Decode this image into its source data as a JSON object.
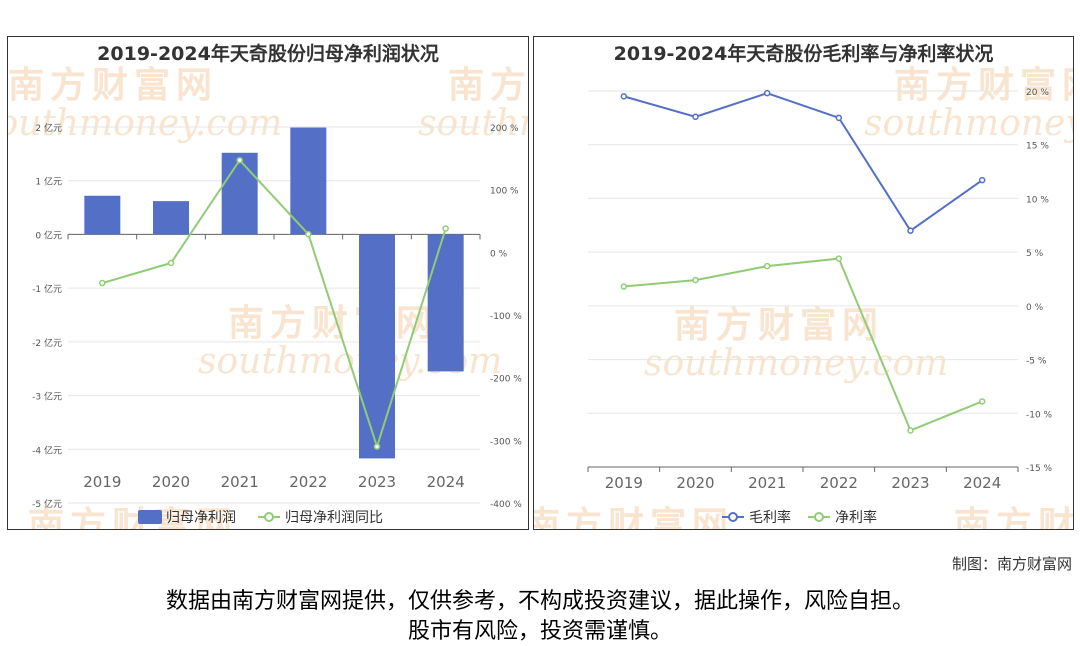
{
  "watermark": {
    "cn": "南方财富网",
    "en": "southmoney.com"
  },
  "colors": {
    "bar": "#5470c6",
    "green": "#91cc75",
    "blue": "#5470c6"
  },
  "credit": "制图：南方财富网",
  "disclaimer": {
    "line1": "数据由南方财富网提供，仅供参考，不构成投资建议，据此操作，风险自担。",
    "line2": "股市有风险，投资需谨慎。"
  },
  "chart_data": [
    {
      "type": "bar",
      "title": "2019-2024年天奇股份归母净利润状况",
      "categories": [
        "2019",
        "2020",
        "2021",
        "2022",
        "2023",
        "2024"
      ],
      "y_left": {
        "ticks": [
          2,
          1,
          0,
          -1,
          -2,
          -3,
          -4,
          -5
        ],
        "tick_labels": [
          "2 亿元",
          "1 亿元",
          "0 亿元",
          "-1 亿元",
          "-2 亿元",
          "-3 亿元",
          "-4 亿元",
          "-5 亿元"
        ],
        "range": [
          -5,
          2
        ]
      },
      "y_right": {
        "ticks": [
          200,
          100,
          0,
          -100,
          -200,
          -300,
          -400
        ],
        "tick_labels": [
          "200 %",
          "100 %",
          "0 %",
          "-100 %",
          "-200 %",
          "-300 %",
          "-400 %"
        ],
        "range": [
          -400,
          200
        ]
      },
      "series": [
        {
          "name": "归母净利润",
          "type": "bar",
          "axis": "left",
          "values": [
            0.72,
            0.62,
            1.52,
            1.99,
            -4.17,
            -2.55
          ]
        },
        {
          "name": "归母净利润同比",
          "type": "line",
          "axis": "right",
          "values": [
            -49,
            -17,
            147,
            29,
            -310,
            38
          ]
        }
      ],
      "legend": "bottom"
    },
    {
      "type": "line",
      "title": "2019-2024年天奇股份毛利率与净利率状况",
      "categories": [
        "2019",
        "2020",
        "2021",
        "2022",
        "2023",
        "2024"
      ],
      "y_right": {
        "ticks": [
          20,
          15,
          10,
          5,
          0,
          -5,
          -10,
          -15
        ],
        "tick_labels": [
          "20 %",
          "15 %",
          "10 %",
          "5 %",
          "0 %",
          "-5 %",
          "-10 %",
          "-15 %"
        ],
        "range": [
          -15,
          20
        ]
      },
      "series": [
        {
          "name": "毛利率",
          "type": "line",
          "axis": "right",
          "values": [
            19.5,
            17.6,
            19.8,
            17.5,
            7.0,
            11.7
          ]
        },
        {
          "name": "净利率",
          "type": "line",
          "axis": "right",
          "values": [
            1.8,
            2.4,
            3.7,
            4.4,
            -11.6,
            -8.9
          ]
        }
      ],
      "legend": "bottom"
    }
  ]
}
